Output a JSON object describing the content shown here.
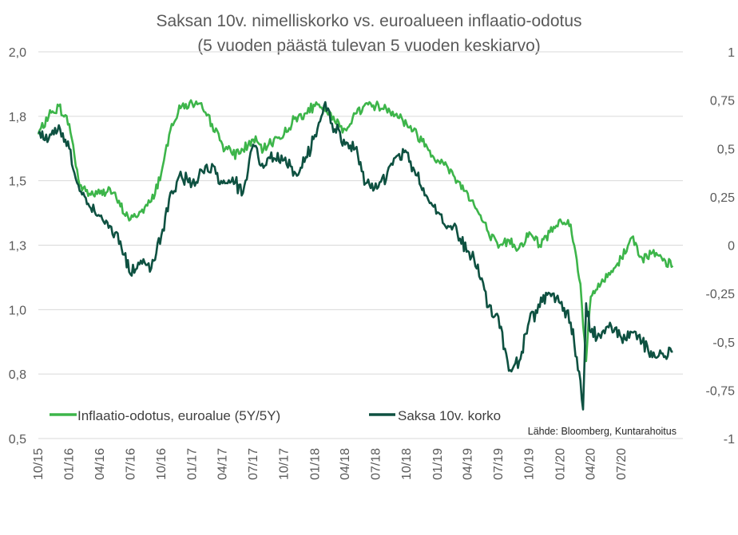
{
  "chart_data": {
    "type": "line",
    "title": "Saksan 10v. nimelliskorko vs. euroalueen inflaatio-odotus",
    "subtitle": "(5 vuoden päästä tulevan 5 vuoden keskiarvo)",
    "source": "Lähde: Bloomberg, Kuntarahoitus",
    "x_tick_labels": [
      "10/15",
      "01/16",
      "04/16",
      "07/16",
      "10/16",
      "01/17",
      "04/17",
      "07/17",
      "10/17",
      "01/18",
      "04/18",
      "07/18",
      "10/18",
      "01/19",
      "04/19",
      "07/19",
      "10/19",
      "01/20",
      "04/20",
      "07/20"
    ],
    "xlim": [
      "2015-10-01",
      "2020-12-31"
    ],
    "y_left": {
      "ylim": [
        0.5,
        2.0
      ],
      "ticks": [
        "2,0",
        "1,8",
        "1,5",
        "1,3",
        "1,0",
        "0,8",
        "0,5"
      ]
    },
    "y_right": {
      "ylim": [
        -1,
        1
      ],
      "ticks": [
        "1",
        "0,75",
        "0,5",
        "0,25",
        "0",
        "-0,25",
        "-0,5",
        "-0,75",
        "-1"
      ]
    },
    "grid": true,
    "legend_position": "bottom-left",
    "series": [
      {
        "name": "Inflaatio-odotus, euroalue (5Y/5Y)",
        "axis": "left",
        "color": "#3db54a",
        "x": [
          "2015-10-01",
          "2015-11-01",
          "2015-12-01",
          "2016-01-01",
          "2016-02-01",
          "2016-03-01",
          "2016-04-01",
          "2016-05-01",
          "2016-06-01",
          "2016-07-01",
          "2016-08-01",
          "2016-09-01",
          "2016-10-01",
          "2016-11-01",
          "2016-12-01",
          "2017-01-01",
          "2017-02-01",
          "2017-03-01",
          "2017-04-01",
          "2017-05-01",
          "2017-06-01",
          "2017-07-01",
          "2017-08-01",
          "2017-09-01",
          "2017-10-01",
          "2017-11-01",
          "2017-12-01",
          "2018-01-01",
          "2018-02-01",
          "2018-03-01",
          "2018-04-01",
          "2018-05-01",
          "2018-06-01",
          "2018-07-01",
          "2018-08-01",
          "2018-09-01",
          "2018-10-01",
          "2018-11-01",
          "2018-12-01",
          "2019-01-01",
          "2019-02-01",
          "2019-03-01",
          "2019-04-01",
          "2019-05-01",
          "2019-06-01",
          "2019-07-01",
          "2019-08-01",
          "2019-09-01",
          "2019-10-01",
          "2019-11-01",
          "2019-12-01",
          "2020-01-01",
          "2020-02-01",
          "2020-03-01",
          "2020-03-18",
          "2020-04-01",
          "2020-05-01",
          "2020-06-01",
          "2020-07-01",
          "2020-08-01",
          "2020-09-01",
          "2020-10-01",
          "2020-11-01",
          "2020-12-01"
        ],
        "values": [
          1.68,
          1.75,
          1.79,
          1.72,
          1.48,
          1.45,
          1.45,
          1.47,
          1.4,
          1.35,
          1.38,
          1.42,
          1.53,
          1.72,
          1.79,
          1.8,
          1.78,
          1.72,
          1.64,
          1.6,
          1.62,
          1.66,
          1.62,
          1.66,
          1.68,
          1.74,
          1.76,
          1.79,
          1.77,
          1.73,
          1.7,
          1.76,
          1.8,
          1.79,
          1.78,
          1.76,
          1.72,
          1.68,
          1.63,
          1.58,
          1.55,
          1.5,
          1.45,
          1.38,
          1.3,
          1.24,
          1.27,
          1.24,
          1.3,
          1.25,
          1.3,
          1.35,
          1.33,
          1.1,
          0.8,
          1.05,
          1.1,
          1.15,
          1.2,
          1.28,
          1.2,
          1.22,
          1.19,
          1.17
        ]
      },
      {
        "name": "Saksa 10v. korko",
        "axis": "right",
        "color": "#0e5141",
        "x": [
          "2015-10-01",
          "2015-11-01",
          "2015-12-01",
          "2016-01-01",
          "2016-02-01",
          "2016-03-01",
          "2016-04-01",
          "2016-05-01",
          "2016-06-01",
          "2016-07-01",
          "2016-08-01",
          "2016-09-01",
          "2016-10-01",
          "2016-11-01",
          "2016-12-01",
          "2017-01-01",
          "2017-02-01",
          "2017-03-01",
          "2017-04-01",
          "2017-05-01",
          "2017-06-01",
          "2017-07-01",
          "2017-08-01",
          "2017-09-01",
          "2017-10-01",
          "2017-11-01",
          "2017-12-01",
          "2018-01-01",
          "2018-02-01",
          "2018-03-01",
          "2018-04-01",
          "2018-05-01",
          "2018-06-01",
          "2018-07-01",
          "2018-08-01",
          "2018-09-01",
          "2018-10-01",
          "2018-11-01",
          "2018-12-01",
          "2019-01-01",
          "2019-02-01",
          "2019-03-01",
          "2019-04-01",
          "2019-05-01",
          "2019-06-01",
          "2019-07-01",
          "2019-08-01",
          "2019-09-01",
          "2019-10-01",
          "2019-11-01",
          "2019-12-01",
          "2020-01-01",
          "2020-02-01",
          "2020-03-01",
          "2020-03-09",
          "2020-03-18",
          "2020-04-01",
          "2020-05-01",
          "2020-06-01",
          "2020-07-01",
          "2020-08-01",
          "2020-09-01",
          "2020-10-01",
          "2020-11-01",
          "2020-12-01"
        ],
        "values": [
          0.58,
          0.55,
          0.62,
          0.5,
          0.28,
          0.2,
          0.15,
          0.1,
          0.02,
          -0.15,
          -0.08,
          -0.12,
          0.05,
          0.28,
          0.35,
          0.32,
          0.38,
          0.42,
          0.32,
          0.35,
          0.27,
          0.52,
          0.4,
          0.45,
          0.44,
          0.38,
          0.43,
          0.57,
          0.74,
          0.6,
          0.52,
          0.5,
          0.32,
          0.32,
          0.34,
          0.46,
          0.48,
          0.36,
          0.25,
          0.17,
          0.1,
          0.06,
          -0.03,
          -0.1,
          -0.32,
          -0.37,
          -0.65,
          -0.6,
          -0.39,
          -0.32,
          -0.25,
          -0.3,
          -0.4,
          -0.7,
          -0.85,
          -0.3,
          -0.45,
          -0.48,
          -0.42,
          -0.48,
          -0.45,
          -0.5,
          -0.58,
          -0.56,
          -0.55
        ]
      }
    ]
  }
}
